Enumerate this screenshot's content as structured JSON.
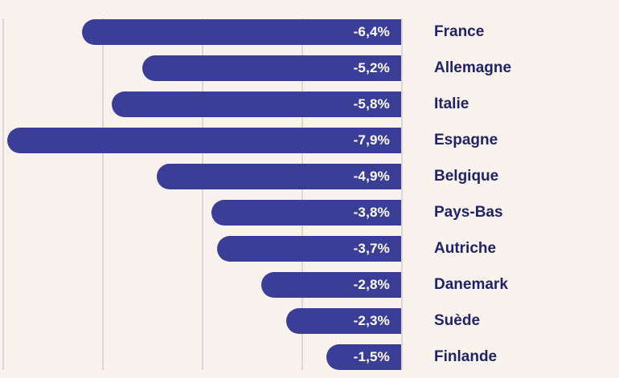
{
  "chart_data": {
    "type": "bar",
    "orientation": "horizontal",
    "title": "",
    "xlabel": "",
    "ylabel": "",
    "xlim": [
      -8,
      0
    ],
    "grid": true,
    "gridline_values": [
      -8,
      -6,
      -4,
      -2,
      0
    ],
    "legend": false,
    "categories": [
      "France",
      "Allemagne",
      "Italie",
      "Espagne",
      "Belgique",
      "Pays-Bas",
      "Autriche",
      "Danemark",
      "Suède",
      "Finlande"
    ],
    "values": [
      -6.4,
      -5.2,
      -5.8,
      -7.9,
      -4.9,
      -3.8,
      -3.7,
      -2.8,
      -2.3,
      -1.5
    ],
    "value_labels": [
      "-6,4%",
      "-5,2%",
      "-5,8%",
      "-7,9%",
      "-4,9%",
      "-3,8%",
      "-3,7%",
      "-2,8%",
      "-2,3%",
      "-1,5%"
    ]
  },
  "style": {
    "background_color": "#f9f2ed",
    "bar_color": "#3a3e96",
    "value_text_color": "#ffffff",
    "category_text_color": "#1f2468",
    "gridline_color": "#ddd7da"
  }
}
